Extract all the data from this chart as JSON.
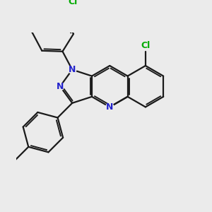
{
  "bg_color": "#ebebeb",
  "bond_color": "#1a1a1a",
  "n_color": "#2222cc",
  "cl_color": "#00aa00",
  "lw": 1.6,
  "figsize": [
    3.0,
    3.0
  ],
  "dpi": 100,
  "xlim": [
    0,
    10
  ],
  "ylim": [
    0,
    10
  ]
}
